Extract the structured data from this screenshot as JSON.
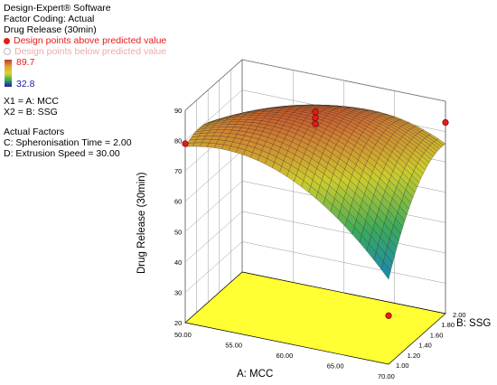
{
  "header": {
    "software": "Design-Expert® Software",
    "coding": "Factor Coding: Actual",
    "response": "Drug Release (30min)",
    "legend_above": "Design points above predicted value",
    "legend_below": "Design points below predicted value",
    "scale_max": "89.7",
    "scale_min": "32.8",
    "x1": "X1 = A: MCC",
    "x2": "X2 = B: SSG",
    "actual_title": "Actual Factors",
    "actual_c": "C: Spheronisation Time = 2.00",
    "actual_d": "D: Extrusion Speed = 30.00"
  },
  "colors": {
    "above": "#e41a1c",
    "below": "#f4b4b4",
    "contour_floor": "#ffff33",
    "high": "#c0392b",
    "low": "#1a1aa6"
  },
  "chart_data": {
    "type": "surface3d",
    "title": "",
    "xlabel": "A: MCC",
    "ylabel": "B: SSG",
    "zlabel": "Drug Release (30min)",
    "xlim": [
      50,
      70
    ],
    "ylim": [
      1.0,
      2.0
    ],
    "zlim": [
      20,
      90
    ],
    "x_ticks": [
      "50.00",
      "55.00",
      "60.00",
      "65.00",
      "70.00"
    ],
    "y_ticks": [
      "1.00",
      "1.20",
      "1.40",
      "1.60",
      "1.80",
      "2.00"
    ],
    "z_ticks": [
      "20",
      "30",
      "40",
      "50",
      "60",
      "70",
      "80",
      "90"
    ],
    "surface_range": [
      32.8,
      89.7
    ],
    "design_points": [
      {
        "x": 50,
        "y": 1.0,
        "z": 79
      },
      {
        "x": 70,
        "y": 2.0,
        "z": 83
      },
      {
        "x": 60,
        "y": 1.5,
        "z": 88
      },
      {
        "x": 60,
        "y": 1.5,
        "z": 86
      },
      {
        "x": 60,
        "y": 1.5,
        "z": 84
      },
      {
        "x": 70,
        "y": 1.0,
        "z": 36
      }
    ]
  }
}
